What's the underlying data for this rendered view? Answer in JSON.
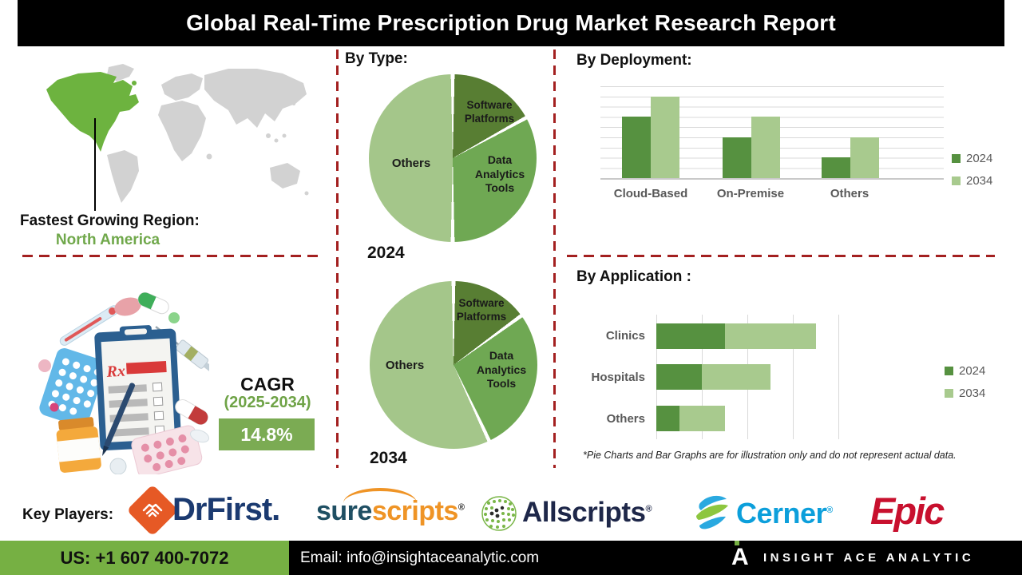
{
  "title": "Global Real-Time Prescription Drug Market Research Report",
  "region": {
    "label": "Fastest Growing Region:",
    "value": "North America"
  },
  "cagr": {
    "label": "CAGR",
    "period": "(2025-2034)",
    "value": "14.8%"
  },
  "sections": {
    "type": "By Type:",
    "deployment": "By  Deployment:",
    "application": "By Application :"
  },
  "footnote": "*Pie Charts and Bar Graphs are for illustration only and do not represent actual data.",
  "key_players": {
    "label": "Key Players:",
    "drfirst": {
      "text": "DrFirst."
    },
    "surescripts": {
      "part1": "sure",
      "part2": "scripts",
      "mark": "®"
    },
    "allscripts": {
      "text": "Allscripts",
      "mark": "®"
    },
    "cerner": {
      "text": "Cerner",
      "mark": "®"
    },
    "epic": {
      "text": "Epic"
    }
  },
  "footer": {
    "phone": "US: +1 607 400-7072",
    "email": "Email: info@insightaceanalytic.com",
    "logo_letter": "A",
    "brand": "INSIGHT ACE ANALYTIC"
  },
  "colors": {
    "banner_black": "#000000",
    "accent_red_dash": "#a32020",
    "map_highlight_green": "#6db33f",
    "map_gray": "#d2d2d2",
    "footer_green": "#76b043",
    "cagr_box_green": "#7bab53",
    "cagr_text_green": "#6fa347",
    "region_green": "#70a84b",
    "pie_dark": "#587e33",
    "pie_mid": "#6fa853",
    "pie_light": "#a4c68a",
    "bar_2024": "#569140",
    "bar_2034": "#a8ca8e",
    "gray_label": "#595959"
  },
  "chart_data": [
    {
      "id": "by-type-2024",
      "type": "pie",
      "title": "By Type: 2024",
      "year_label": "2024",
      "labels": [
        "Software Platforms",
        "Data Analytics Tools",
        "Others"
      ],
      "values": [
        17,
        33,
        50
      ],
      "colors": [
        "#587e33",
        "#6fa853",
        "#a4c68a"
      ],
      "note": "illustrative percentages estimated from slice angles"
    },
    {
      "id": "by-type-2034",
      "type": "pie",
      "title": "By Type: 2034",
      "year_label": "2034",
      "labels": [
        "Software Platforms",
        "Data Analytics Tools",
        "Others"
      ],
      "values": [
        15,
        28,
        57
      ],
      "colors": [
        "#587e33",
        "#6fa853",
        "#a4c68a"
      ],
      "note": "illustrative percentages estimated from slice angles"
    },
    {
      "id": "deployment",
      "type": "bar",
      "title": "By Deployment:",
      "categories": [
        "Cloud-Based",
        "On-Premise",
        "Others"
      ],
      "series": [
        {
          "name": "2024",
          "color": "#569140",
          "values": [
            6,
            4,
            2
          ]
        },
        {
          "name": "2034",
          "color": "#a8ca8e",
          "values": [
            8,
            6,
            4
          ]
        }
      ],
      "ylim": [
        0,
        9
      ],
      "grid": "horizontal",
      "legend_position": "right",
      "note": "illustrative values estimated from gridlines"
    },
    {
      "id": "application",
      "type": "stacked-bar-horizontal",
      "title": "By Application :",
      "categories": [
        "Clinics",
        "Hospitals",
        "Others"
      ],
      "series": [
        {
          "name": "2024",
          "color": "#569140",
          "values": [
            1.5,
            1,
            0.5
          ]
        },
        {
          "name": "2034",
          "color": "#a8ca8e",
          "values": [
            2,
            1.5,
            1
          ]
        }
      ],
      "xlim": [
        0,
        4
      ],
      "grid": "vertical",
      "legend_position": "right",
      "note": "illustrative values estimated from gridlines"
    }
  ]
}
